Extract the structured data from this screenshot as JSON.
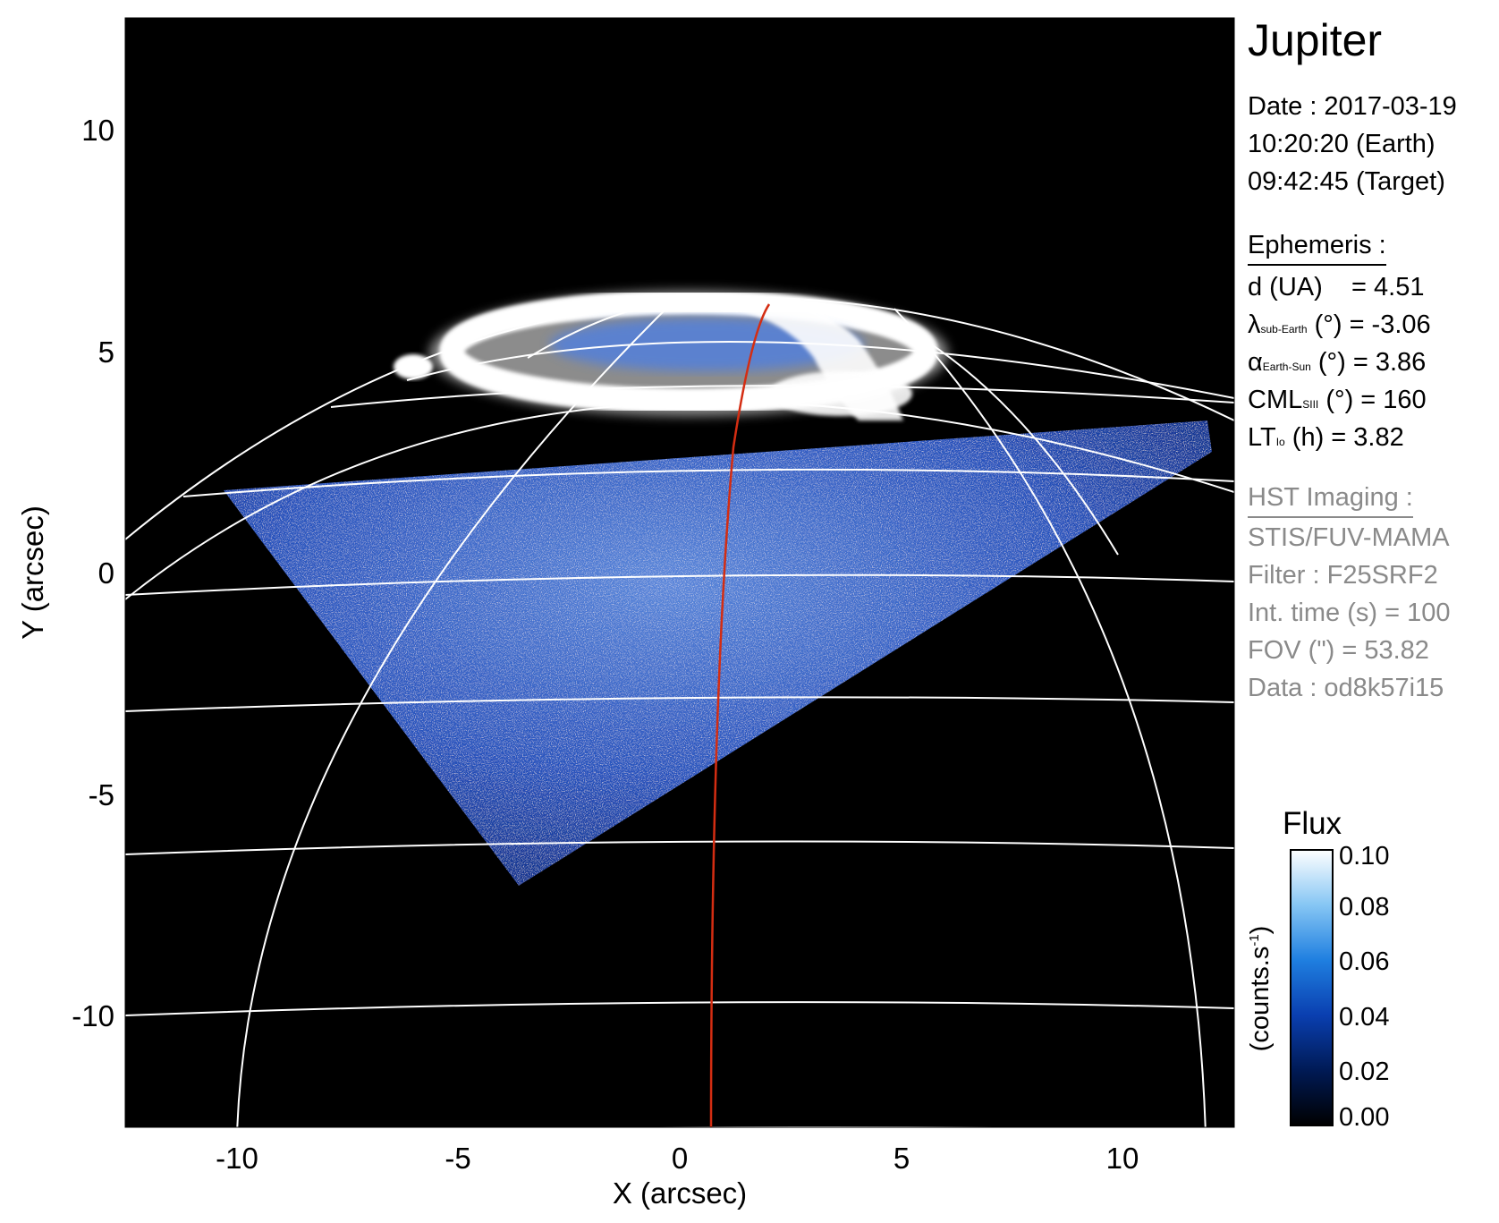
{
  "title": "Jupiter",
  "observation": {
    "date_line": "Date : 2017-03-19",
    "time_earth": "10:20:20 (Earth)",
    "time_target": "09:42:45 (Target)"
  },
  "ephemeris": {
    "heading": "Ephemeris :",
    "d_label": "d (UA)",
    "d_value": "= 4.51",
    "lat_symbol": "λ",
    "lat_sub": "sub-Earth",
    "lat_value": "(°) = -3.06",
    "phase_symbol": "α",
    "phase_sub": "Earth-Sun",
    "phase_value": "(°) = 3.86",
    "cml_label": "CML",
    "cml_sub": "SIII",
    "cml_value": "(°) = 160",
    "lt_label": "LT",
    "lt_sub": "Io",
    "lt_value": "(h) = 3.82"
  },
  "hst": {
    "heading": "HST Imaging :",
    "instrument": "STIS/FUV-MAMA",
    "filter": "Filter : F25SRF2",
    "int_time": "Int. time (s) = 100",
    "fov": "FOV (\") = 53.82",
    "data_id": "Data : od8k57i15"
  },
  "axes": {
    "x_label": "X (arcsec)",
    "y_label": "Y (arcsec)",
    "x_ticks": [
      "-10",
      "-5",
      "0",
      "5",
      "10"
    ],
    "y_ticks": [
      "10",
      "5",
      "0",
      "-5",
      "-10"
    ]
  },
  "colorbar": {
    "title": "Flux",
    "unit_label": "(counts.s",
    "unit_sup": "-1",
    "unit_close": ")",
    "ticks": [
      "0.10",
      "0.08",
      "0.06",
      "0.04",
      "0.02",
      "0.00"
    ],
    "colors": [
      "#000000",
      "#001a55",
      "#0a3fb0",
      "#1f7fe0",
      "#86c6f4",
      "#ffffff"
    ]
  },
  "colors": {
    "background": "#000000",
    "grid": "#ffffff",
    "io_footpath": "#d42d12",
    "aurora": "#ffffff",
    "disk_glow": "#2a58c8"
  }
}
